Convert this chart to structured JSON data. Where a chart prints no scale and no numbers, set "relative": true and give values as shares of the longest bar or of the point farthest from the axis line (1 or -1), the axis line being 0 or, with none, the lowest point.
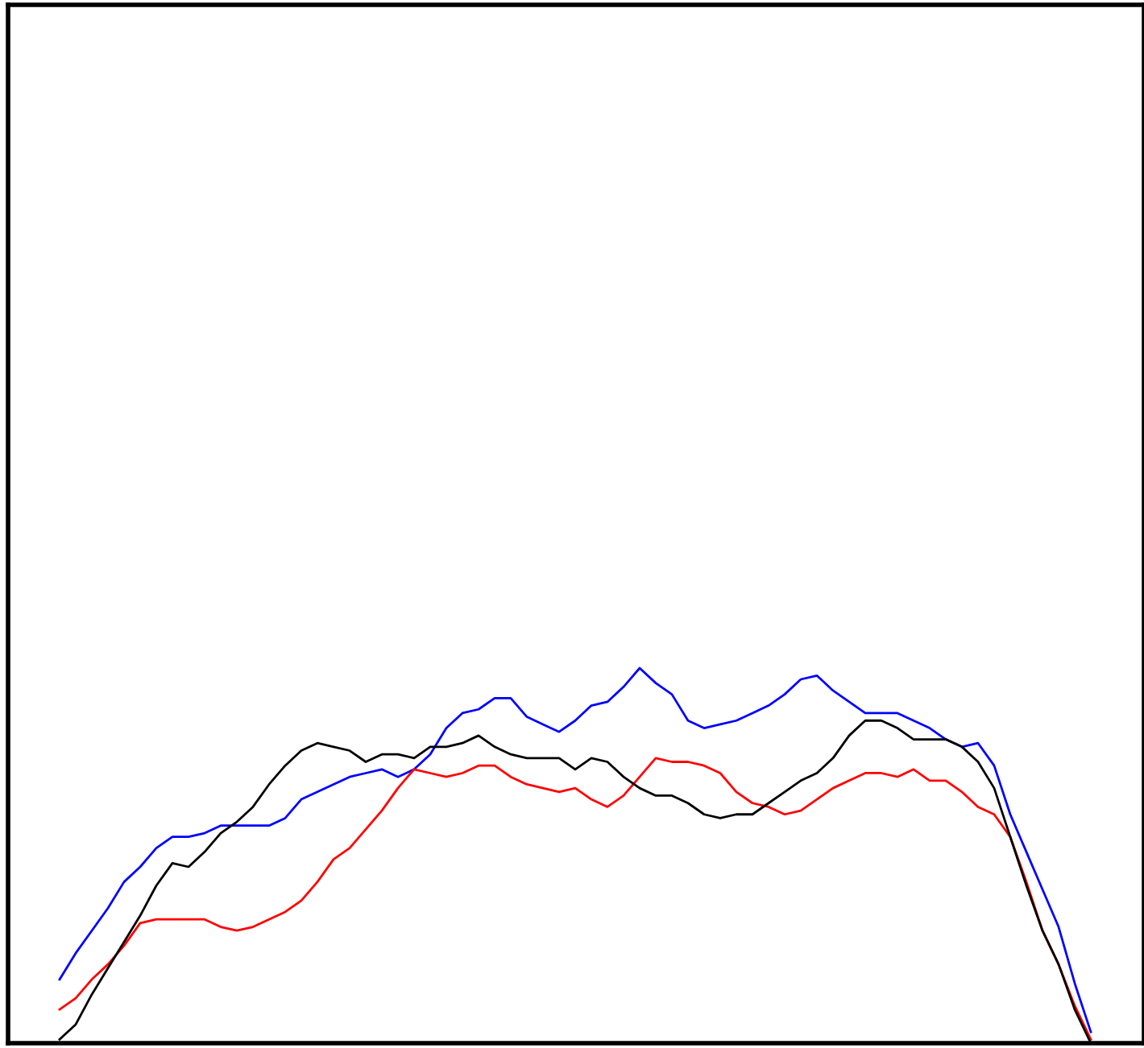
{
  "chart_data": {
    "type": "line",
    "relative": true,
    "tick_labels": false,
    "categories": [
      null,
      null,
      null,
      null,
      null,
      null,
      null,
      null,
      null,
      null,
      null,
      null,
      null,
      null,
      null,
      null,
      null,
      null,
      null,
      null,
      null,
      null,
      null,
      null,
      null,
      null,
      null,
      null,
      null,
      null,
      null,
      null,
      null,
      null,
      null,
      null,
      null,
      null,
      null,
      null,
      null,
      null,
      null,
      null,
      null,
      null,
      null,
      null,
      null,
      null,
      null,
      null,
      null,
      null,
      null,
      null,
      null,
      null,
      null,
      null,
      null,
      null,
      null,
      null,
      null
    ],
    "series": [
      {
        "color": "#0000ff",
        "values": [
          0.17,
          0.24,
          0.3,
          0.36,
          0.43,
          0.47,
          0.52,
          0.55,
          0.55,
          0.56,
          0.58,
          0.58,
          0.58,
          0.58,
          0.6,
          0.65,
          0.67,
          0.69,
          0.71,
          0.72,
          0.73,
          0.71,
          0.73,
          0.77,
          0.84,
          0.88,
          0.89,
          0.92,
          0.92,
          0.87,
          0.85,
          0.83,
          0.86,
          0.9,
          0.91,
          0.95,
          1.0,
          0.96,
          0.93,
          0.86,
          0.84,
          0.85,
          0.86,
          0.88,
          0.9,
          0.93,
          0.97,
          0.98,
          0.94,
          0.91,
          0.88,
          0.88,
          0.88,
          0.86,
          0.84,
          0.81,
          0.79,
          0.8,
          0.74,
          0.61,
          0.51,
          0.41,
          0.31,
          0.16,
          0.03
        ]
      },
      {
        "color": "#ff0000",
        "values": [
          0.09,
          0.12,
          0.17,
          0.21,
          0.26,
          0.32,
          0.33,
          0.33,
          0.33,
          0.33,
          0.31,
          0.3,
          0.31,
          0.33,
          0.35,
          0.38,
          0.43,
          0.49,
          0.52,
          0.57,
          0.62,
          0.68,
          0.73,
          0.72,
          0.71,
          0.72,
          0.74,
          0.74,
          0.71,
          0.69,
          0.68,
          0.67,
          0.68,
          0.65,
          0.63,
          0.66,
          0.71,
          0.76,
          0.75,
          0.75,
          0.74,
          0.72,
          0.67,
          0.64,
          0.63,
          0.61,
          0.62,
          0.65,
          0.68,
          0.7,
          0.72,
          0.72,
          0.71,
          0.73,
          0.7,
          0.7,
          0.67,
          0.63,
          0.61,
          0.55,
          0.43,
          0.3,
          0.21,
          0.1,
          0.01
        ]
      },
      {
        "color": "#000000",
        "values": [
          0.01,
          0.05,
          0.13,
          0.2,
          0.27,
          0.34,
          0.42,
          0.48,
          0.47,
          0.51,
          0.56,
          0.59,
          0.63,
          0.69,
          0.74,
          0.78,
          0.8,
          0.79,
          0.78,
          0.75,
          0.77,
          0.77,
          0.76,
          0.79,
          0.79,
          0.8,
          0.82,
          0.79,
          0.77,
          0.76,
          0.76,
          0.76,
          0.73,
          0.76,
          0.75,
          0.71,
          0.68,
          0.66,
          0.66,
          0.64,
          0.61,
          0.6,
          0.61,
          0.61,
          0.64,
          0.67,
          0.7,
          0.72,
          0.76,
          0.82,
          0.86,
          0.86,
          0.84,
          0.81,
          0.81,
          0.81,
          0.79,
          0.75,
          0.68,
          0.55,
          0.42,
          0.3,
          0.21,
          0.09,
          0.0
        ]
      }
    ]
  }
}
